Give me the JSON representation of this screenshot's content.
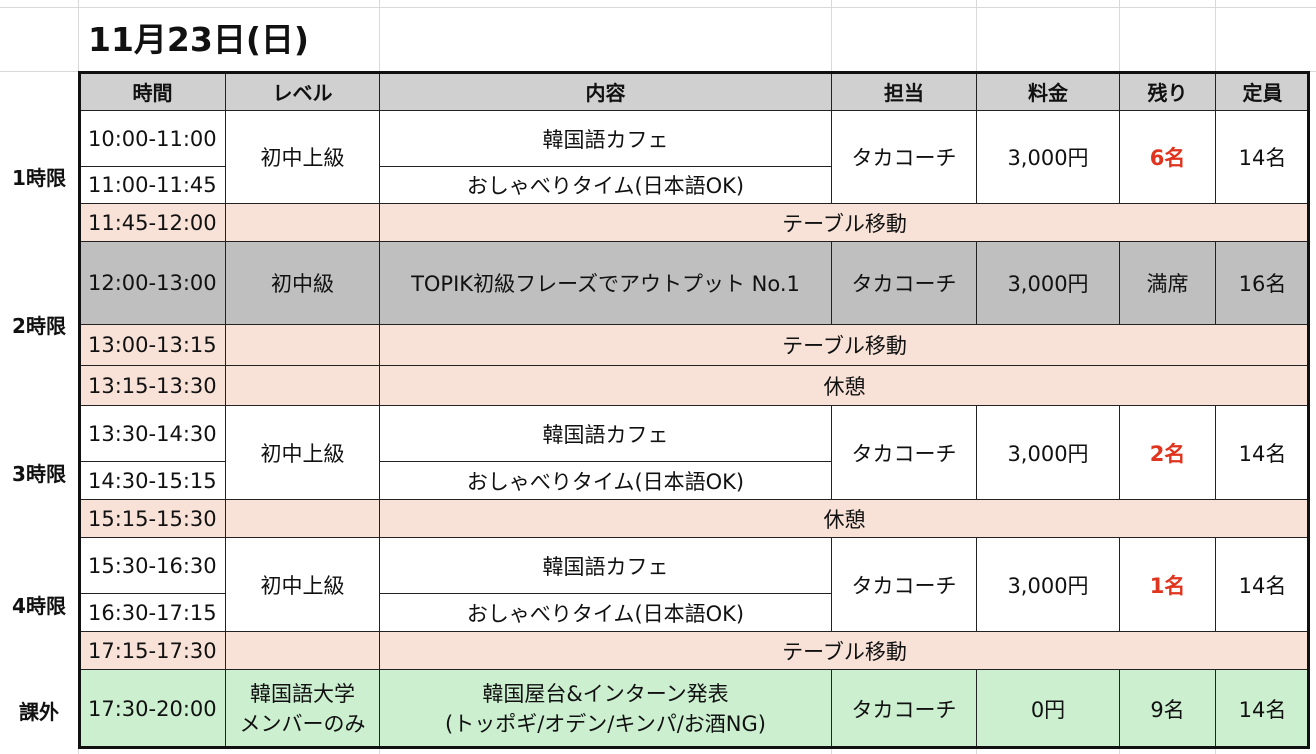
{
  "title": "11月23日(日)",
  "headers": {
    "time": "時間",
    "level": "レベル",
    "content": "内容",
    "teacher": "担当",
    "fee": "料金",
    "remaining": "残り",
    "capacity": "定員"
  },
  "periods": {
    "p1": "1時限",
    "p2": "2時限",
    "p3": "3時限",
    "p4": "4時限",
    "extra": "課外"
  },
  "rows": {
    "r1": {
      "time_a": "10:00-11:00",
      "time_b": "11:00-11:45",
      "level": "初中上級",
      "content_a": "韓国語カフェ",
      "content_b": "おしゃべりタイム(日本語OK)",
      "teacher": "タカコーチ",
      "fee": "3,000円",
      "remaining": "6名",
      "capacity": "14名"
    },
    "b1": {
      "time": "11:45-12:00",
      "label": "テーブル移動"
    },
    "r2": {
      "time": "12:00-13:00",
      "level": "初中級",
      "content": "TOPIK初級フレーズでアウトプット No.1",
      "teacher": "タカコーチ",
      "fee": "3,000円",
      "remaining": "満席",
      "capacity": "16名"
    },
    "b2": {
      "time": "13:00-13:15",
      "label": "テーブル移動"
    },
    "b3": {
      "time": "13:15-13:30",
      "label": "休憩"
    },
    "r3": {
      "time_a": "13:30-14:30",
      "time_b": "14:30-15:15",
      "level": "初中上級",
      "content_a": "韓国語カフェ",
      "content_b": "おしゃべりタイム(日本語OK)",
      "teacher": "タカコーチ",
      "fee": "3,000円",
      "remaining": "2名",
      "capacity": "14名"
    },
    "b4": {
      "time": "15:15-15:30",
      "label": "休憩"
    },
    "r4": {
      "time_a": "15:30-16:30",
      "time_b": "16:30-17:15",
      "level": "初中上級",
      "content_a": "韓国語カフェ",
      "content_b": "おしゃべりタイム(日本語OK)",
      "teacher": "タカコーチ",
      "fee": "3,000円",
      "remaining": "1名",
      "capacity": "14名"
    },
    "b5": {
      "time": "17:15-17:30",
      "label": "テーブル移動"
    },
    "r5": {
      "time": "17:30-20:00",
      "level_a": "韓国語大学",
      "level_b": "メンバーのみ",
      "content_a": "韓国屋台&インターン発表",
      "content_b": "(トッポギ/オデン/キンパ/お酒NG)",
      "teacher": "タカコーチ",
      "fee": "0円",
      "remaining": "9名",
      "capacity": "14名"
    }
  },
  "colors": {
    "break_bg": "#f8e2d8",
    "full_bg": "#bfbfbf",
    "extra_bg": "#ccefd0",
    "header_bg": "#d0d0d0",
    "remaining_red": "#e0341e"
  }
}
